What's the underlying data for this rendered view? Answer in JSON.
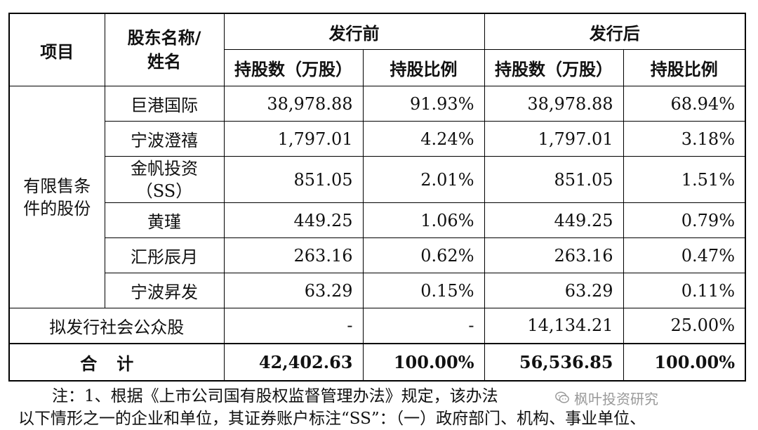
{
  "table": {
    "headers": {
      "item": "项目",
      "holder": "股东名称/姓名",
      "before": "发行前",
      "after": "发行后",
      "shares": "持股数（万股）",
      "ratio": "持股比例"
    },
    "group_label": "有限售条件的股份",
    "rows": [
      {
        "name": "巨港国际",
        "before_shares": "38,978.88",
        "before_ratio": "91.93%",
        "after_shares": "38,978.88",
        "after_ratio": "68.94%"
      },
      {
        "name": "宁波澄禧",
        "before_shares": "1,797.01",
        "before_ratio": "4.24%",
        "after_shares": "1,797.01",
        "after_ratio": "3.18%"
      },
      {
        "name": "金帆投资（SS）",
        "before_shares": "851.05",
        "before_ratio": "2.01%",
        "after_shares": "851.05",
        "after_ratio": "1.51%"
      },
      {
        "name": "黄瑾",
        "before_shares": "449.25",
        "before_ratio": "1.06%",
        "after_shares": "449.25",
        "after_ratio": "0.79%"
      },
      {
        "name": "汇彤辰月",
        "before_shares": "263.16",
        "before_ratio": "0.62%",
        "after_shares": "263.16",
        "after_ratio": "0.47%"
      },
      {
        "name": "宁波昇发",
        "before_shares": "63.29",
        "before_ratio": "0.15%",
        "after_shares": "63.29",
        "after_ratio": "0.11%"
      }
    ],
    "public": {
      "label": "拟发行社会公众股",
      "before_shares": "-",
      "before_ratio": "-",
      "after_shares": "14,134.21",
      "after_ratio": "25.00%"
    },
    "total": {
      "label": "合计",
      "before_shares": "42,402.63",
      "before_ratio": "100.00%",
      "after_shares": "56,536.85",
      "after_ratio": "100.00%"
    }
  },
  "notes": {
    "line1": "注：1、根据《上市公司国有股权监督管理办法》规定，该办法",
    "line2": "以下情形之一的企业和单位，其证券账户标注“SS”：（一）政府部门、机构、事业单位、"
  },
  "watermark": {
    "text": "枫叶投资研究",
    "icon": "wechat-icon"
  }
}
